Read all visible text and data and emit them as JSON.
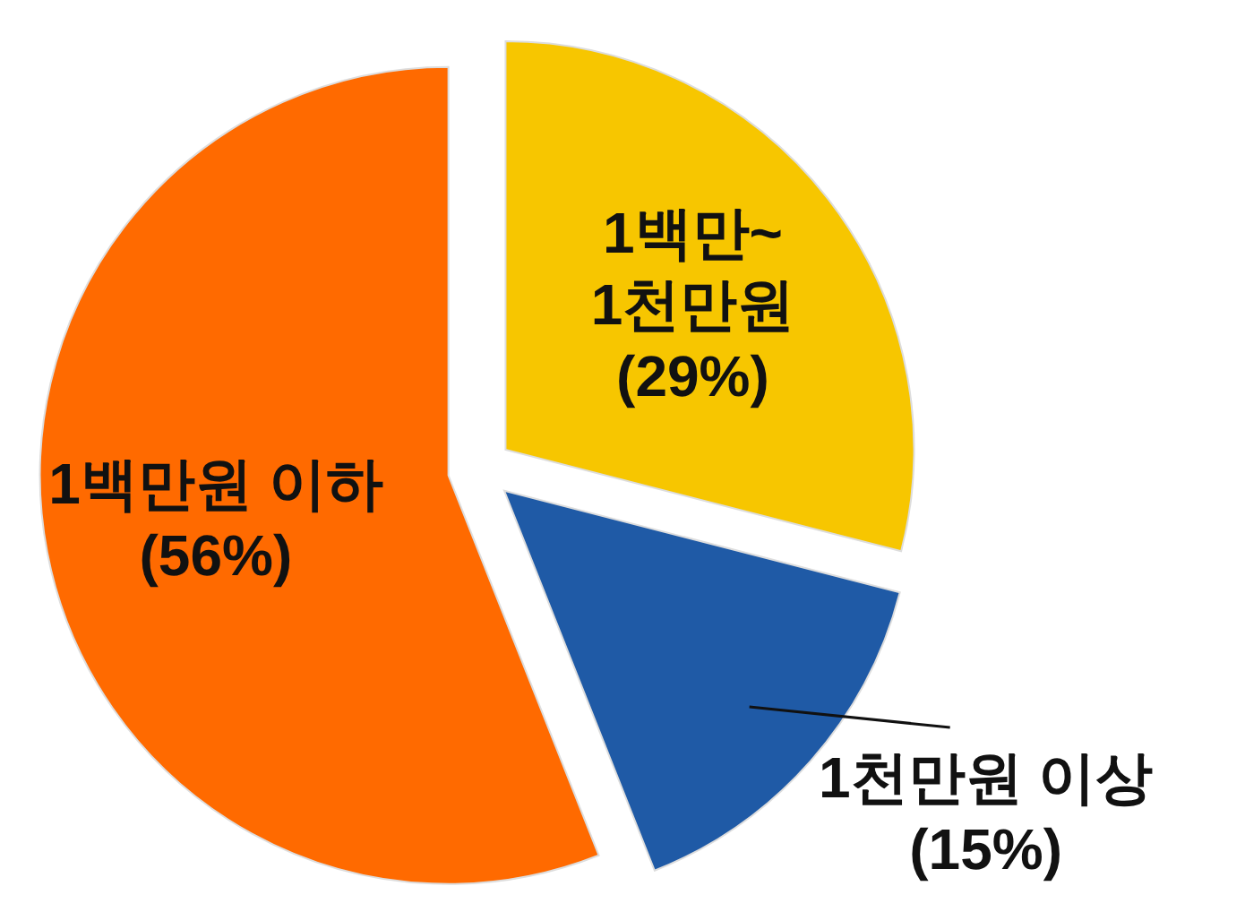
{
  "chart_data": {
    "type": "pie",
    "categories": [
      "1백만~ 1천만원",
      "1천만원 이상",
      "1백만원 이하"
    ],
    "values": [
      29,
      15,
      56
    ],
    "colors": [
      "#f7c600",
      "#1f5aa6",
      "#ff6a00"
    ],
    "value_labels": [
      "(29%)",
      "(15%)",
      "(56%)"
    ]
  }
}
